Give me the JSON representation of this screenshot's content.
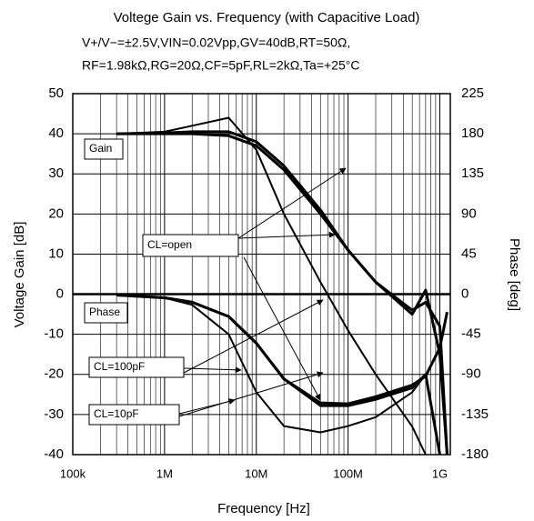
{
  "chart_data": {
    "type": "line",
    "title": "Voltege Gain vs. Frequency (with Capacitive Load)",
    "subtitle": [
      "V+/V−=±2.5V,VIN=0.02Vpp,GV=40dB,RT=50Ω,",
      "RF=1.98kΩ,RG=20Ω,CF=5pF,RL=2kΩ,Ta=+25°C"
    ],
    "x_label": "Frequency [Hz]",
    "y_label": "Voltage Gain [dB]",
    "y2_label": "Phase [deg]",
    "log_x": true,
    "grid": true,
    "xlim": [
      100000,
      1300000000
    ],
    "xticks": [
      {
        "value": 100000,
        "label": "100k"
      },
      {
        "value": 1000000,
        "label": "1M"
      },
      {
        "value": 10000000,
        "label": "10M"
      },
      {
        "value": 100000000,
        "label": "100M"
      },
      {
        "value": 1000000000,
        "label": "1G"
      }
    ],
    "ylim": [
      -40,
      50
    ],
    "yticks": [
      -40,
      -30,
      -20,
      -10,
      0,
      10,
      20,
      30,
      40,
      50
    ],
    "y2lim": [
      -180,
      225
    ],
    "y2ticks": [
      -180,
      -135,
      -90,
      -45,
      0,
      45,
      90,
      135,
      180,
      225
    ],
    "x": [
      300000,
      1000000,
      2000000,
      5000000,
      10000000,
      20000000,
      50000000,
      100000000,
      200000000,
      500000000,
      700000000,
      1000000000,
      1200000000
    ],
    "series": [
      {
        "color": "#000",
        "values": [
          40,
          40,
          40,
          39.5,
          37,
          31,
          20,
          11,
          3,
          -4,
          -2,
          -8,
          -40
        ]
      },
      {
        "color": "#000",
        "values": [
          40,
          40.2,
          40.5,
          40.5,
          38,
          32,
          21,
          11,
          3,
          -5,
          1,
          -15,
          -40
        ]
      },
      {
        "color": "#000",
        "values": [
          40,
          40.5,
          42,
          44,
          36,
          20,
          3,
          -9,
          -20,
          -33,
          -40,
          null,
          null
        ]
      },
      {
        "color": "#000",
        "axis": "y2",
        "values": [
          -1,
          -4,
          -9,
          -25,
          -55,
          -95,
          -122,
          -123,
          -115,
          -102,
          -92,
          -60,
          -20
        ]
      },
      {
        "color": "#000",
        "axis": "y2",
        "values": [
          -1,
          -4,
          -9,
          -25,
          -55,
          -95,
          -125,
          -125,
          -118,
          -105,
          -90,
          -180,
          null
        ]
      },
      {
        "color": "#000",
        "axis": "y2",
        "values": [
          -1,
          -4,
          -12,
          -45,
          -110,
          -148,
          -155,
          -148,
          -138,
          -110,
          -90,
          -180,
          null
        ]
      }
    ],
    "annotations": [
      "Gain",
      "Phase",
      "CL=open",
      "CL=100pF",
      "CL=10pF"
    ]
  }
}
